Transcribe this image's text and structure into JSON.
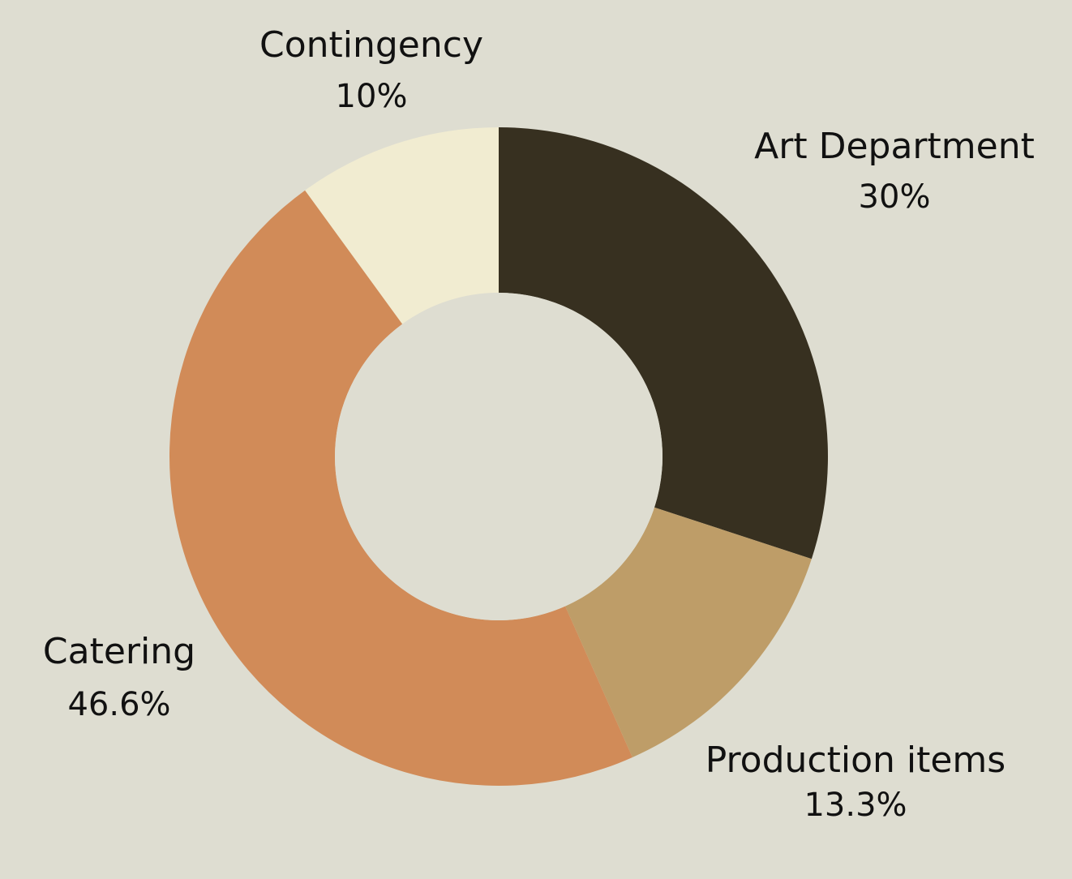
{
  "chart_data": {
    "type": "pie",
    "donut": true,
    "background_color": "#deddd1",
    "slices": [
      {
        "label": "Art Department",
        "value": 30,
        "value_label": "30%",
        "color": "#373020"
      },
      {
        "label": "Production items",
        "value": 13.3,
        "value_label": "13.3%",
        "color": "#be9d68"
      },
      {
        "label": "Catering",
        "value": 46.6,
        "value_label": "46.6%",
        "color": "#d18b58"
      },
      {
        "label": "Contingency",
        "value": 10,
        "value_label": "10%",
        "color": "#f1ecd1"
      }
    ],
    "legend": "none"
  }
}
